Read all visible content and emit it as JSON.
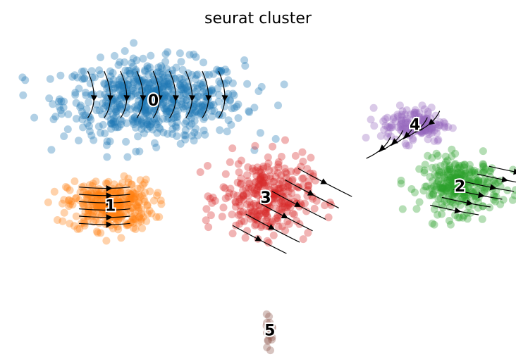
{
  "chart_data": {
    "type": "scatter",
    "title": "seurat cluster",
    "xlabel": "",
    "ylabel": "",
    "axes_visible": false,
    "grid": false,
    "legend": "on data",
    "overlay": "velocity stream arrows",
    "clusters": [
      {
        "label": "0",
        "color": "#1f77b4",
        "center": [
          -4.5,
          8.0
        ],
        "spread": [
          4.0,
          2.2
        ],
        "n": 650
      },
      {
        "label": "1",
        "color": "#ff7f0e",
        "center": [
          -6.6,
          1.5
        ],
        "spread": [
          1.9,
          1.4
        ],
        "n": 320
      },
      {
        "label": "2",
        "color": "#2ca02c",
        "center": [
          10.5,
          2.7
        ],
        "spread": [
          1.8,
          1.5
        ],
        "n": 300
      },
      {
        "label": "3",
        "color": "#d62728",
        "center": [
          1.0,
          2.0
        ],
        "spread": [
          2.0,
          2.2
        ],
        "n": 320
      },
      {
        "label": "4",
        "color": "#9467bd",
        "center": [
          8.3,
          6.5
        ],
        "spread": [
          1.5,
          1.0
        ],
        "n": 150
      },
      {
        "label": "5",
        "color": "#8c564b",
        "center": [
          1.2,
          -6.2
        ],
        "spread": [
          0.15,
          0.9
        ],
        "n": 24
      }
    ]
  }
}
